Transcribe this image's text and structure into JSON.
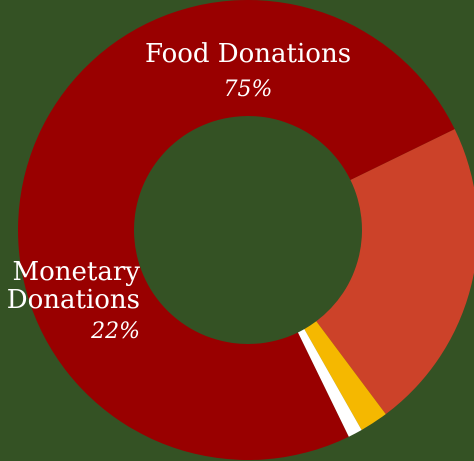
{
  "chart_data": {
    "type": "pie",
    "donut": true,
    "title": "",
    "background": "#345224",
    "slices": [
      {
        "name": "Food Donations",
        "value": 75,
        "percent_label": "75%",
        "color": "#990000"
      },
      {
        "name": "Monetary Donations",
        "value": 22,
        "percent_label": "22%",
        "color": "#cc4229"
      },
      {
        "name": "",
        "value": 2,
        "percent_label": "",
        "color": "#f5b800"
      },
      {
        "name": "",
        "value": 1,
        "percent_label": "",
        "color": "#ffffff"
      }
    ],
    "labels": {
      "food": {
        "line1": "Food Donations",
        "pct": "75%"
      },
      "monetary": {
        "line1": "Monetary",
        "line2": "Donations",
        "pct": "22%"
      }
    }
  }
}
